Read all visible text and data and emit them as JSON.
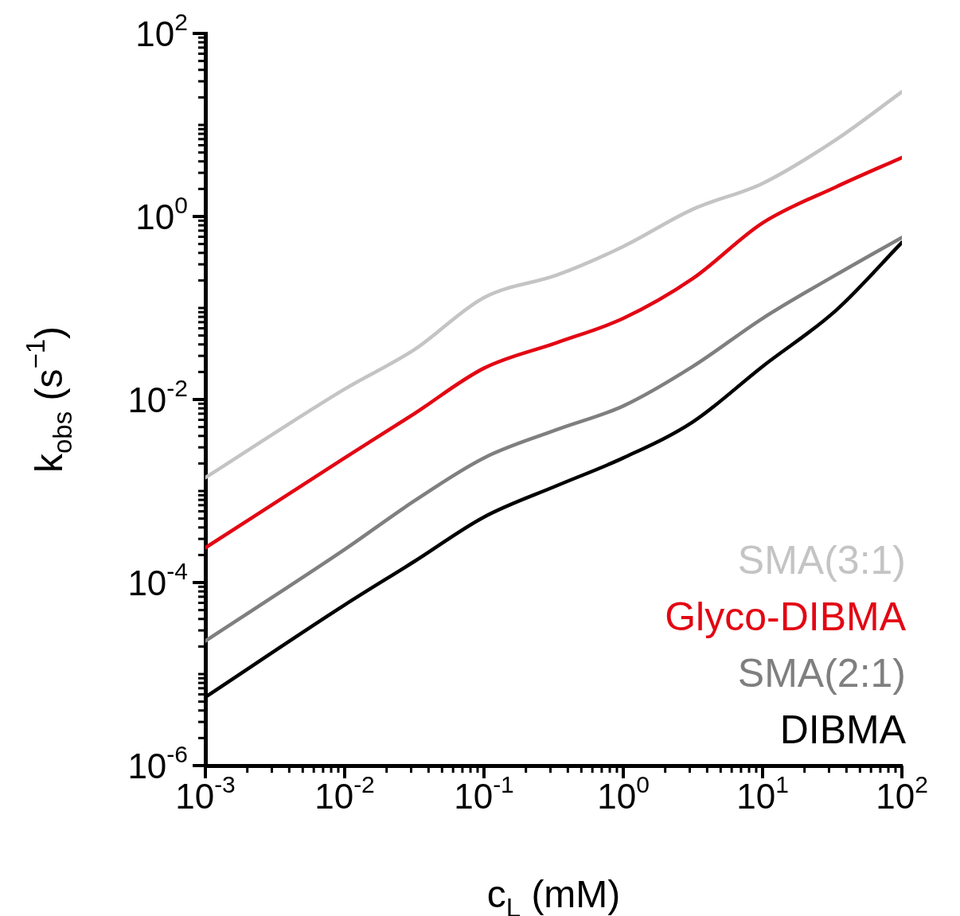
{
  "chart_data": {
    "type": "line",
    "xlabel": "c$_{L}$ (mM)",
    "ylabel": "k$_{obs}$ (s$^{−1}$)",
    "log": "xy",
    "marker": "none",
    "line_style": "solid",
    "grid": false,
    "legend": "bottom right",
    "x": [
      0.001,
      0.01,
      0.0316,
      0.1,
      0.336,
      1,
      3.16,
      10,
      33.6,
      100
    ],
    "xlim": [
      0.001,
      100
    ],
    "xticks": [
      {
        "value": 0.001,
        "label": "10$^{-3}$"
      },
      {
        "value": 0.01,
        "label": "10$^{-2}$"
      },
      {
        "value": 0.1,
        "label": "10$^{-1}$"
      },
      {
        "value": 1,
        "label": "10$^{0}$"
      },
      {
        "value": 10,
        "label": "10$^{1}$"
      },
      {
        "value": 100,
        "label": "10$^{2}$"
      }
    ],
    "ylim": [
      1e-06,
      100
    ],
    "yticks": [
      {
        "value": 1e-06,
        "label": "10$^{-6}$"
      },
      {
        "value": 0.0001,
        "label": "10$^{-4}$"
      },
      {
        "value": 0.01,
        "label": "10$^{-2}$"
      },
      {
        "value": 1,
        "label": "10$^{0}$"
      },
      {
        "value": 100,
        "label": "10$^{2}$"
      }
    ],
    "series": [
      {
        "name": "SMA(3:1)",
        "color": "#c4c4c4",
        "values": [
          0.0014,
          0.013,
          0.035,
          0.13,
          0.23,
          0.47,
          1.2,
          2.3,
          6.9,
          23
        ]
      },
      {
        "name": "Glyco-DIBMA",
        "color": "#e30613",
        "values": [
          0.00024,
          0.0023,
          0.007,
          0.022,
          0.042,
          0.077,
          0.21,
          0.85,
          2.1,
          4.4
        ]
      },
      {
        "name": "SMA(2:1)",
        "color": "#7f7f7f",
        "values": [
          2.3e-05,
          0.00023,
          0.00078,
          0.0023,
          0.0047,
          0.0085,
          0.023,
          0.077,
          0.23,
          0.59
        ]
      },
      {
        "name": "DIBMA",
        "color": "#000000",
        "values": [
          5.6e-06,
          5.7e-05,
          0.00017,
          0.00052,
          0.00115,
          0.0023,
          0.0057,
          0.023,
          0.094,
          0.52
        ]
      }
    ]
  }
}
